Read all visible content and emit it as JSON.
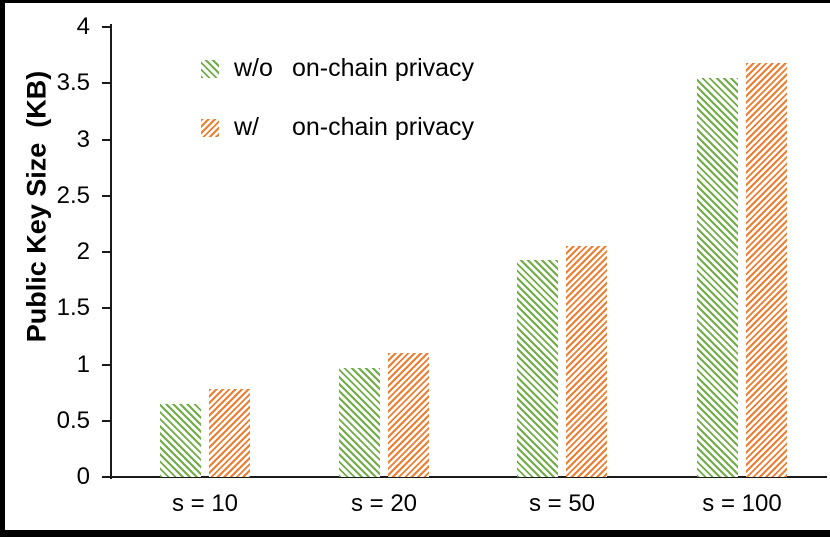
{
  "chart_data": {
    "type": "bar",
    "title": "",
    "ylabel": "Public Key Size  (KB)",
    "xlabel": "",
    "categories": [
      "s = 10",
      "s = 20",
      "s = 50",
      "s = 100"
    ],
    "series": [
      {
        "name_prefix": "w/o",
        "name": "on-chain privacy",
        "color": "#70AD47",
        "hatch": "forward-diagonal",
        "values": [
          0.65,
          0.97,
          1.93,
          3.55
        ]
      },
      {
        "name_prefix": "w/",
        "name": "on-chain privacy",
        "color": "#ED7D31",
        "hatch": "backward-diagonal",
        "values": [
          0.78,
          1.1,
          2.05,
          3.68
        ]
      }
    ],
    "ylim": [
      0,
      4
    ],
    "ytick_step": 0.5,
    "yticks": [
      "0",
      "0.5",
      "1",
      "1.5",
      "2",
      "2.5",
      "3",
      "3.5",
      "4"
    ],
    "grid": false,
    "legend_position": "inside-top-left"
  }
}
